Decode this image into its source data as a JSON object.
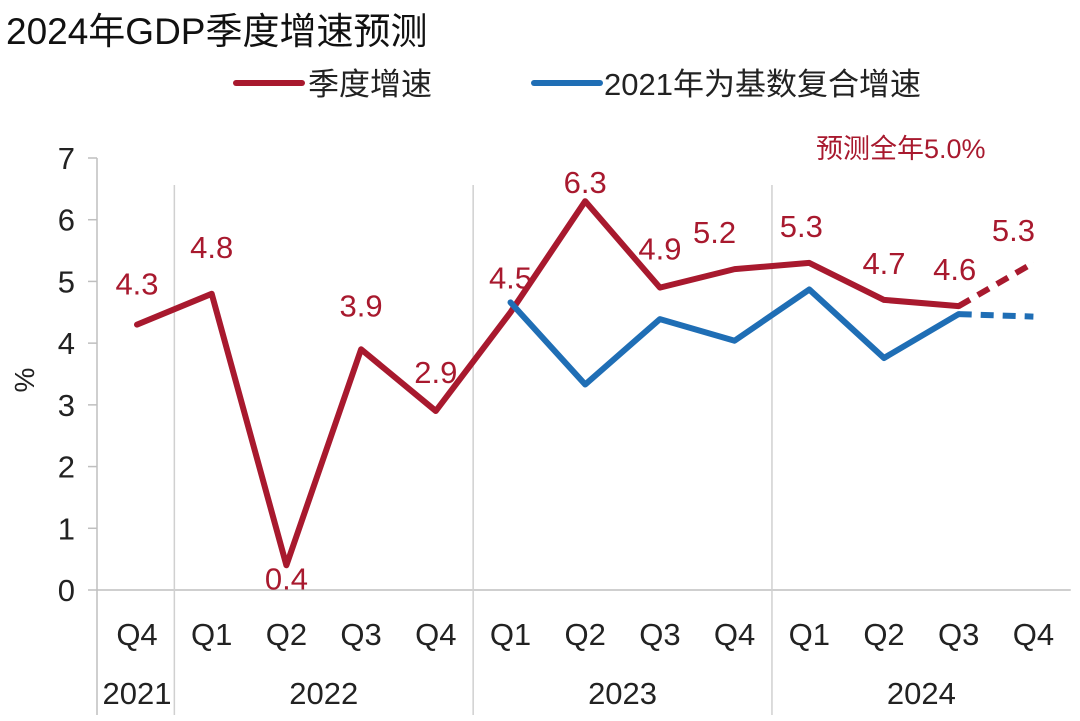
{
  "chart_data": {
    "type": "line",
    "title": "2024年GDP季度增速预测",
    "ylabel": "%",
    "ylim": [
      0,
      7
    ],
    "yticks": [
      0,
      1,
      2,
      3,
      4,
      5,
      6,
      7
    ],
    "grid": false,
    "legend_position": "top",
    "categories": [
      "Q4",
      "Q1",
      "Q2",
      "Q3",
      "Q4",
      "Q1",
      "Q2",
      "Q3",
      "Q4",
      "Q1",
      "Q2",
      "Q3",
      "Q4"
    ],
    "year_groups": [
      {
        "label": "2021",
        "start": 0,
        "end": 0
      },
      {
        "label": "2022",
        "start": 1,
        "end": 4
      },
      {
        "label": "2023",
        "start": 5,
        "end": 8
      },
      {
        "label": "2024",
        "start": 9,
        "end": 12
      }
    ],
    "series": [
      {
        "name": "季度增速",
        "color": "#A8192E",
        "values": [
          4.3,
          4.8,
          0.4,
          3.9,
          2.9,
          4.5,
          6.3,
          4.9,
          5.2,
          5.3,
          4.7,
          4.6,
          5.3
        ],
        "labels": [
          "4.3",
          "4.8",
          "0.4",
          "3.9",
          "2.9",
          "4.5",
          "6.3",
          "4.9",
          "5.2",
          "5.3",
          "4.7",
          "4.6",
          "5.3"
        ],
        "forecast_from_index": 11
      },
      {
        "name": "2021年为基数复合增速",
        "color": "#1F6EB5",
        "values": [
          null,
          null,
          null,
          null,
          null,
          4.66,
          3.33,
          4.39,
          4.04,
          4.87,
          3.76,
          4.47,
          4.43
        ],
        "forecast_from_index": 11
      }
    ],
    "annotation": {
      "prefix": "预测全年",
      "value": "5.0%",
      "color": "#A8192E"
    }
  }
}
